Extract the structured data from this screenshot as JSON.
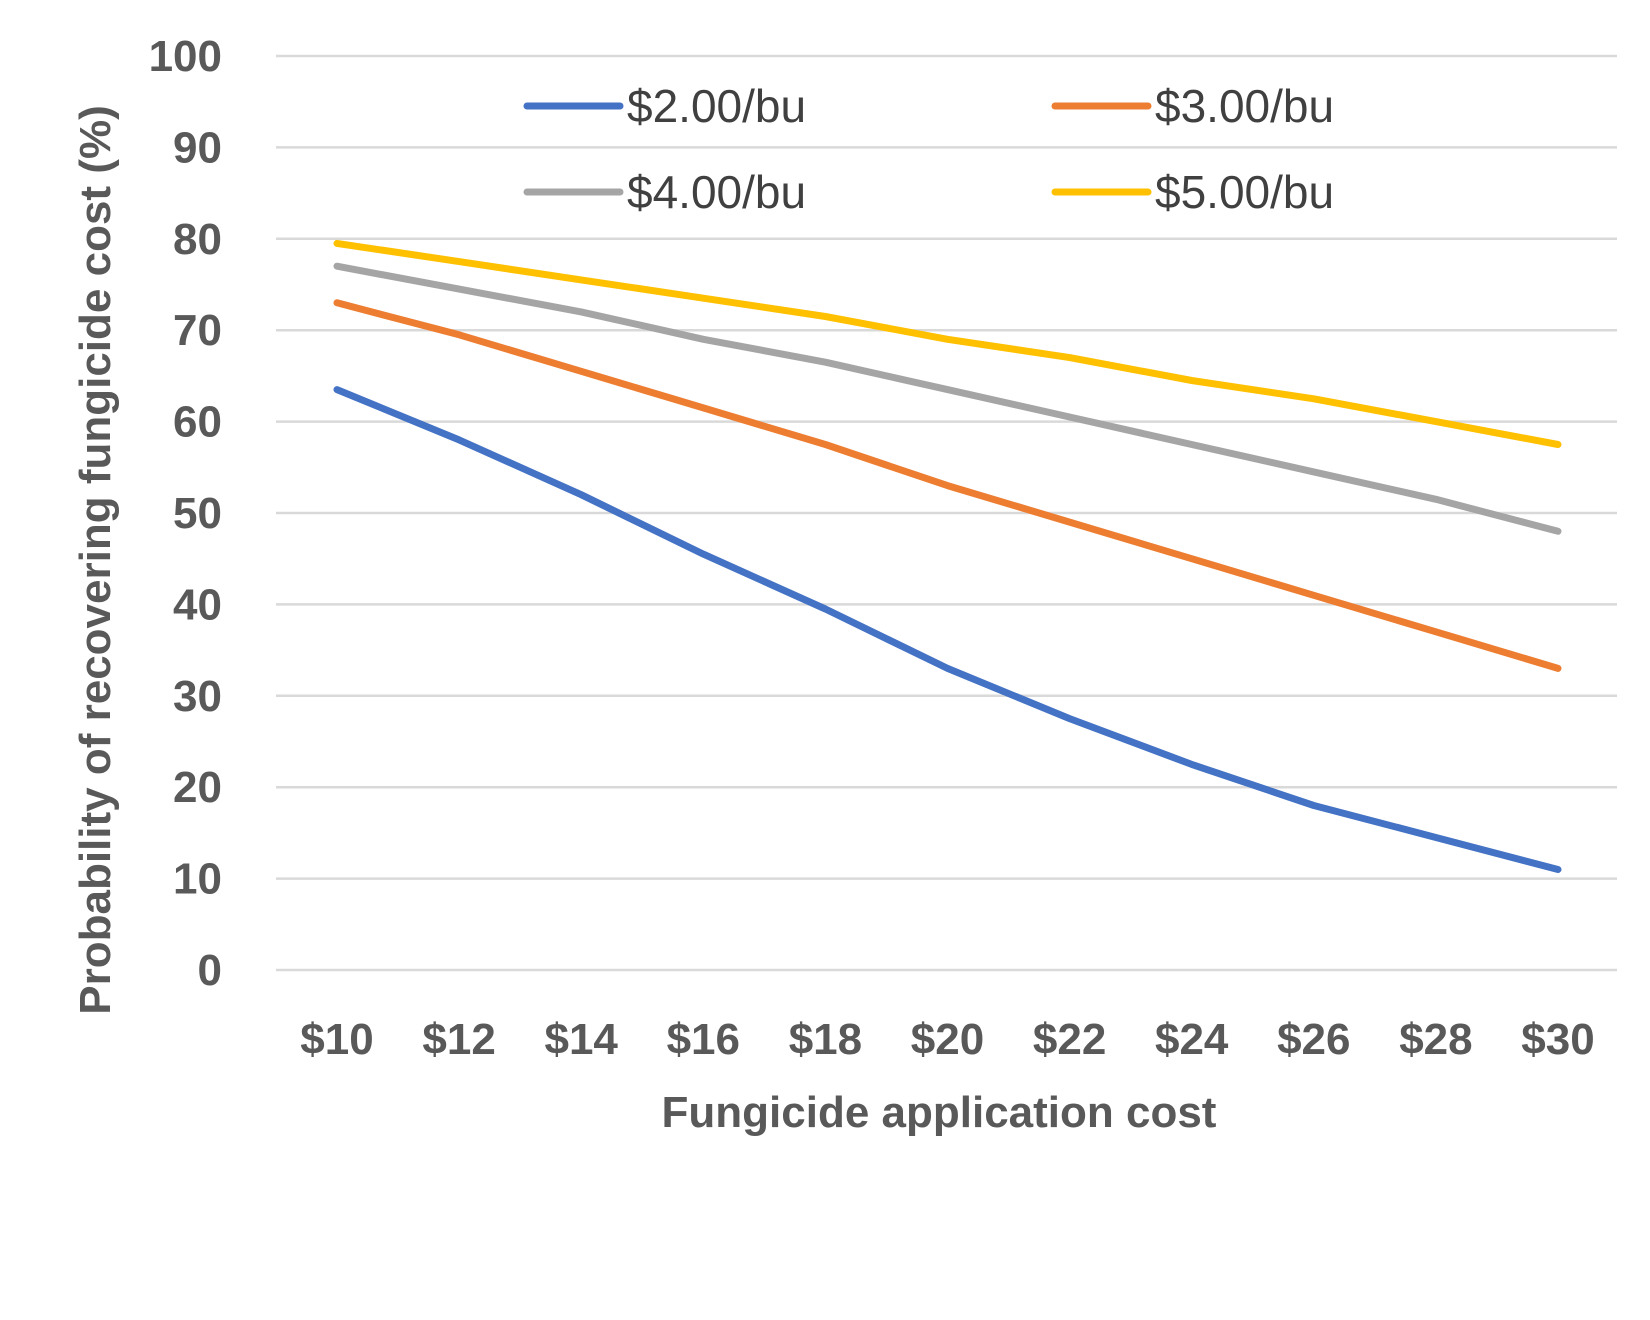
{
  "chart_data": {
    "type": "line",
    "title": "",
    "xlabel": "Fungicide application cost",
    "ylabel": "Probability of recovering fungicide cost (%)",
    "categories": [
      "$10",
      "$12",
      "$14",
      "$16",
      "$18",
      "$20",
      "$22",
      "$24",
      "$26",
      "$28",
      "$30"
    ],
    "ylim": [
      0,
      100
    ],
    "yticks": [
      0,
      10,
      20,
      30,
      40,
      50,
      60,
      70,
      80,
      90,
      100
    ],
    "grid": true,
    "legend_position": "top",
    "series": [
      {
        "name": "$2.00/bu",
        "color": "#4472C4",
        "values": [
          63.5,
          58,
          52,
          45.5,
          39.5,
          33,
          27.5,
          22.5,
          18,
          14.5,
          11
        ]
      },
      {
        "name": "$3.00/bu",
        "color": "#ED7D31",
        "values": [
          73,
          69.5,
          65.5,
          61.5,
          57.5,
          53,
          49,
          45,
          41,
          37,
          33
        ]
      },
      {
        "name": "$4.00/bu",
        "color": "#A5A5A5",
        "values": [
          77,
          74.5,
          72,
          69,
          66.5,
          63.5,
          60.5,
          57.5,
          54.5,
          51.5,
          48
        ]
      },
      {
        "name": "$5.00/bu",
        "color": "#FFC000",
        "values": [
          79.5,
          77.5,
          75.5,
          73.5,
          71.5,
          69,
          67,
          64.5,
          62.5,
          60,
          57.5
        ]
      }
    ]
  }
}
